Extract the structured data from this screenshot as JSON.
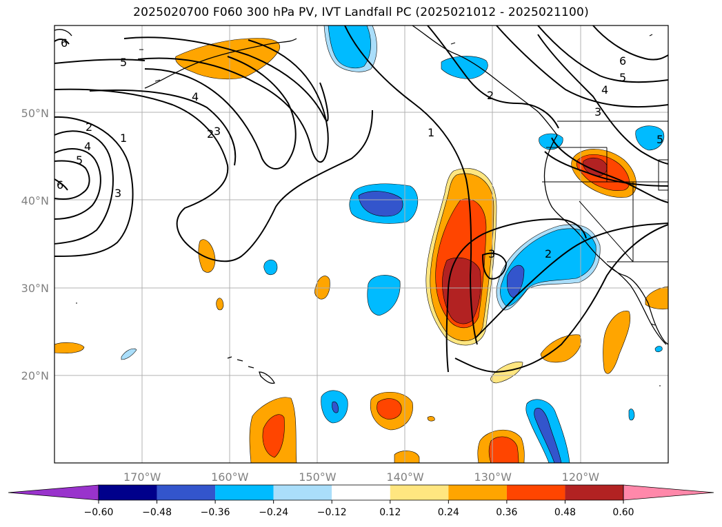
{
  "title": "2025020700 F060 300 hPa PV, IVT Landfall PC (2025021012 - 2025021100)",
  "map": {
    "lon_range": [
      -180,
      -110
    ],
    "lat_range": [
      10,
      60
    ],
    "lat_ticks": [
      {
        "value": 50,
        "label": "50°N"
      },
      {
        "value": 40,
        "label": "40°N"
      },
      {
        "value": 30,
        "label": "30°N"
      },
      {
        "value": 20,
        "label": "20°N"
      }
    ],
    "lon_ticks": [
      {
        "value": -170,
        "label": "170°W"
      },
      {
        "value": -160,
        "label": "160°W"
      },
      {
        "value": -150,
        "label": "150°W"
      },
      {
        "value": -140,
        "label": "140°W"
      },
      {
        "value": -130,
        "label": "130°W"
      },
      {
        "value": -120,
        "label": "120°W"
      }
    ],
    "gridlines": true,
    "contour_labels": [
      "6",
      "5",
      "4",
      "3",
      "2",
      "1",
      "2",
      "4",
      "5",
      "6",
      "3",
      "1",
      "3",
      "2",
      "2",
      "6",
      "5",
      "4",
      "3",
      "5"
    ]
  },
  "colorbar": {
    "orientation": "horizontal",
    "extend": "both",
    "levels": [
      -0.6,
      -0.48,
      -0.36,
      -0.24,
      -0.12,
      0.12,
      0.24,
      0.36,
      0.48,
      0.6
    ],
    "tick_labels": [
      "−0.60",
      "−0.48",
      "−0.36",
      "−0.24",
      "−0.12",
      "0.12",
      "0.24",
      "0.36",
      "0.48",
      "0.60"
    ],
    "colors": [
      "#9933cc",
      "#00008b",
      "#3355cc",
      "#00bbff",
      "#aadefa",
      "#ffffff",
      "#ffe680",
      "#ffa500",
      "#ff4500",
      "#b22222",
      "#ff88aa"
    ]
  }
}
